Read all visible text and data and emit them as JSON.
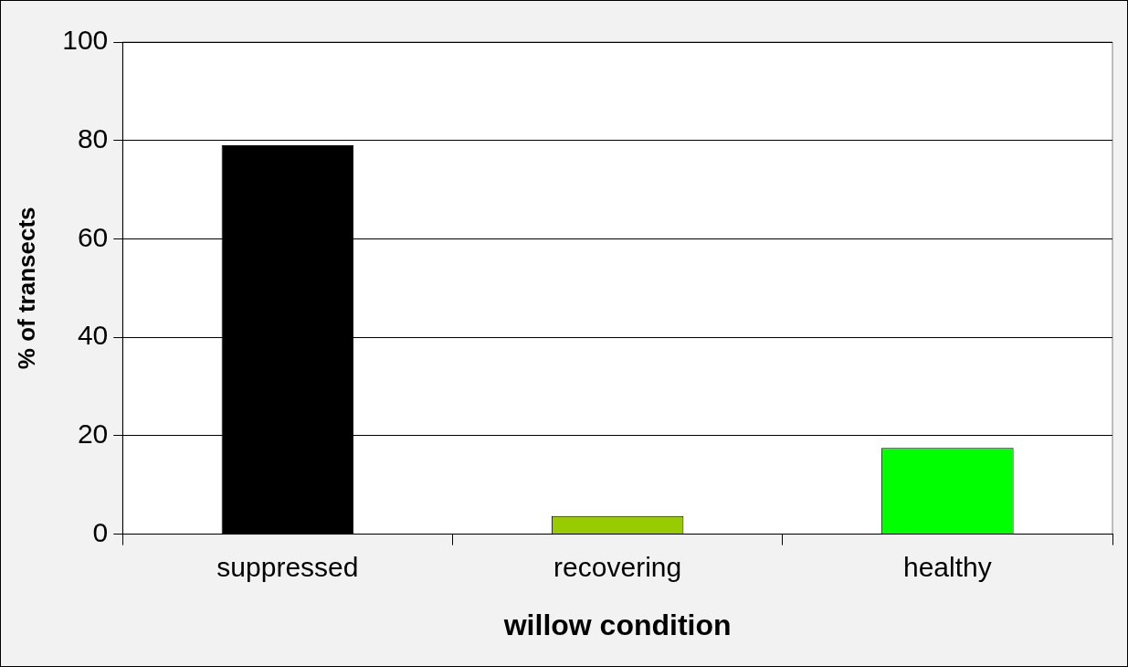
{
  "chart_data": {
    "type": "bar",
    "xlabel": "willow condition",
    "ylabel": "% of transects",
    "categories": [
      "suppressed",
      "recovering",
      "healthy"
    ],
    "values": [
      79,
      3.7,
      17.5
    ],
    "colors": [
      "#000000",
      "#99cc00",
      "#00ff00"
    ],
    "ylim": [
      0,
      100
    ],
    "yticks": [
      0,
      20,
      40,
      60,
      80,
      100
    ],
    "grid": "y",
    "legend": false
  }
}
